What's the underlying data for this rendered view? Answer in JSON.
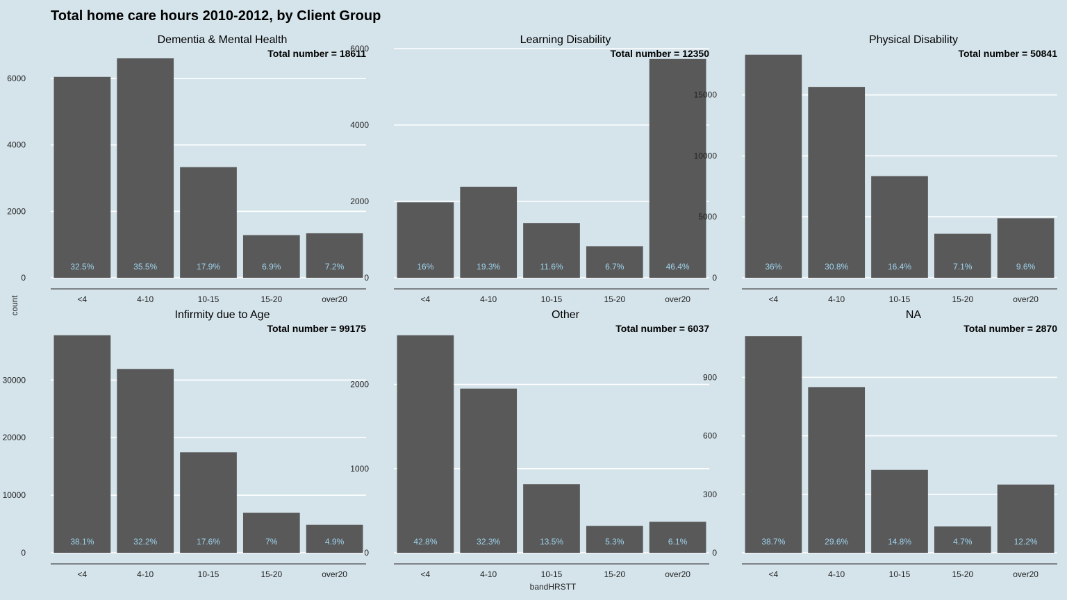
{
  "chart_data": {
    "type": "bar",
    "title": "Total home care hours 2010-2012, by Client Group",
    "xlabel": "bandHRSTT",
    "ylabel": "count",
    "categories": [
      "<4",
      "4-10",
      "10-15",
      "15-20",
      "over20"
    ],
    "grid": true,
    "panels": [
      {
        "name": "Dementia & Mental Health",
        "total_label": "Total number = 18611",
        "values": [
          6048,
          6607,
          3331,
          1284,
          1340
        ],
        "percent_labels": [
          "32.5%",
          "35.5%",
          "17.9%",
          "6.9%",
          "7.2%"
        ],
        "yticks": [
          0,
          2000,
          4000,
          6000
        ],
        "ylim": [
          0,
          6900
        ]
      },
      {
        "name": "Learning Disability",
        "total_label": "Total number = 12350",
        "values": [
          1976,
          2384,
          1433,
          827,
          5730
        ],
        "percent_labels": [
          "16%",
          "19.3%",
          "11.6%",
          "6.7%",
          "46.4%"
        ],
        "yticks": [
          0,
          2000,
          4000,
          6000
        ],
        "ylim": [
          0,
          6000
        ]
      },
      {
        "name": "Physical Disability",
        "total_label": "Total number = 50841",
        "values": [
          18303,
          15659,
          8338,
          3610,
          4881
        ],
        "percent_labels": [
          "36%",
          "30.8%",
          "16.4%",
          "7.1%",
          "9.6%"
        ],
        "yticks": [
          0,
          5000,
          10000,
          15000
        ],
        "ylim": [
          0,
          18800
        ]
      },
      {
        "name": "Infirmity due to Age",
        "total_label": "Total number = 99175",
        "values": [
          37786,
          31934,
          17455,
          6942,
          4860
        ],
        "percent_labels": [
          "38.1%",
          "32.2%",
          "17.6%",
          "7%",
          "4.9%"
        ],
        "yticks": [
          0,
          10000,
          20000,
          30000
        ],
        "ylim": [
          0,
          38600
        ]
      },
      {
        "name": "Other",
        "total_label": "Total number = 6037",
        "values": [
          2584,
          1950,
          815,
          320,
          368
        ],
        "percent_labels": [
          "42.8%",
          "32.3%",
          "13.5%",
          "5.3%",
          "6.1%"
        ],
        "yticks": [
          0,
          1000,
          2000
        ],
        "ylim": [
          0,
          2640
        ]
      },
      {
        "name": "NA",
        "total_label": "Total number = 2870",
        "values": [
          1111,
          850,
          425,
          135,
          350
        ],
        "percent_labels": [
          "38.7%",
          "29.6%",
          "14.8%",
          "4.7%",
          "12.2%"
        ],
        "yticks": [
          0,
          300,
          600,
          900
        ],
        "ylim": [
          0,
          1140
        ]
      }
    ]
  },
  "colors": {
    "background": "#d5e4eb",
    "bar": "#595959",
    "percent_label": "#9fd4ee",
    "grid": "#ffffff",
    "text": "#000000"
  }
}
